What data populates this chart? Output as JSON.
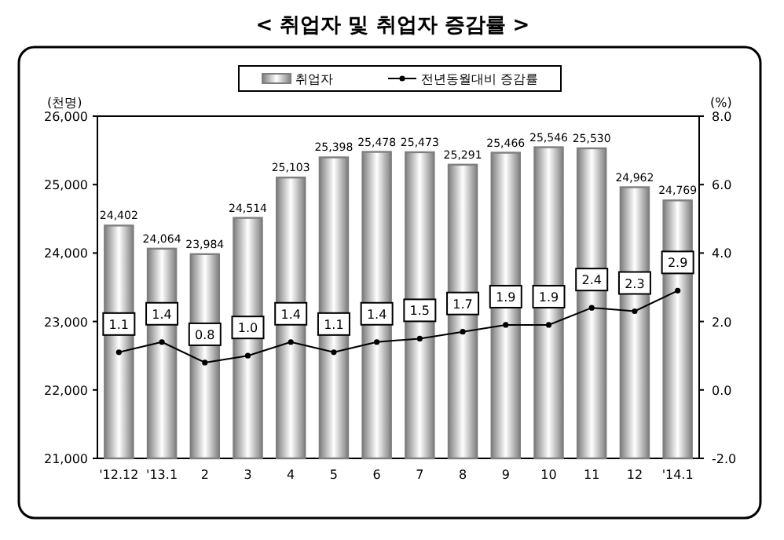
{
  "chart_data": {
    "type": "bar",
    "title": "< 취업자 및 취업자 증감률 >",
    "ylabel": "(천명)",
    "y2label": "(%)",
    "categories": [
      "'12.12",
      "'13.1",
      "2",
      "3",
      "4",
      "5",
      "6",
      "7",
      "8",
      "9",
      "10",
      "11",
      "12",
      "'14.1"
    ],
    "series": [
      {
        "name": "취업자",
        "color": "#7f7f7f",
        "values": [
          24402,
          24064,
          23984,
          24514,
          25103,
          25398,
          25478,
          25473,
          25291,
          25466,
          25546,
          25530,
          24962,
          24769
        ],
        "value_labels": [
          "24,402",
          "24,064",
          "23,984",
          "24,514",
          "25,103",
          "25,398",
          "25,478",
          "25,473",
          "25,291",
          "25,466",
          "25,546",
          "25,530",
          "24,962",
          "24,769"
        ]
      },
      {
        "name": "전년동월대비 증감률",
        "type": "line",
        "axis": "y2",
        "color": "#000000",
        "marker": "circle",
        "values": [
          1.1,
          1.4,
          0.8,
          1.0,
          1.4,
          1.1,
          1.4,
          1.5,
          1.7,
          1.9,
          1.9,
          2.4,
          2.3,
          2.9
        ],
        "value_labels": [
          "1.1",
          "1.4",
          "0.8",
          "1.0",
          "1.4",
          "1.1",
          "1.4",
          "1.5",
          "1.7",
          "1.9",
          "1.9",
          "2.4",
          "2.3",
          "2.9"
        ]
      }
    ],
    "ylim": [
      21000,
      26000
    ],
    "yticks": [
      {
        "value": 21000,
        "label": "21,000"
      },
      {
        "value": 22000,
        "label": "22,000"
      },
      {
        "value": 23000,
        "label": "23,000"
      },
      {
        "value": 24000,
        "label": "24,000"
      },
      {
        "value": 25000,
        "label": "25,000"
      },
      {
        "value": 26000,
        "label": "26,000"
      }
    ],
    "y2lim": [
      -2,
      8
    ],
    "y2ticks": [
      {
        "value": -2,
        "label": "-2.0"
      },
      {
        "value": 0,
        "label": "0.0"
      },
      {
        "value": 2,
        "label": "2.0"
      },
      {
        "value": 4,
        "label": "4.0"
      },
      {
        "value": 6,
        "label": "6.0"
      },
      {
        "value": 8,
        "label": "8.0"
      }
    ],
    "legend": "top",
    "grid": false
  }
}
